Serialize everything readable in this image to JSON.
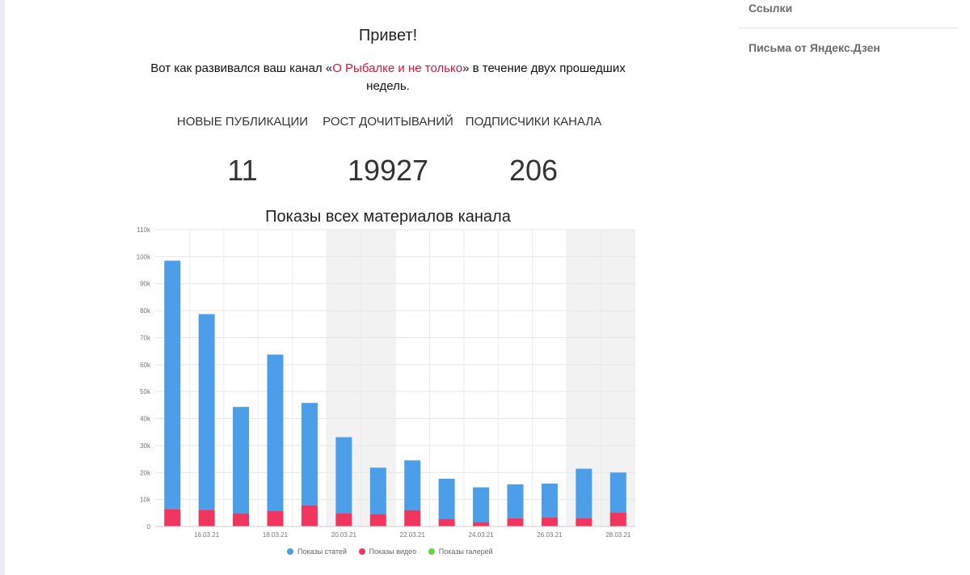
{
  "sidebar": {
    "items": [
      {
        "label": "Ссылки"
      },
      {
        "label": "Письма от Яндекс.Дзен"
      }
    ]
  },
  "letter": {
    "greeting": "Привет!",
    "intro_before": "Вот как развивался ваш канал «",
    "channel_name": "О Рыбалке и не только",
    "intro_after": "» в течение двух прошедших недель."
  },
  "stats": [
    {
      "label": "НОВЫЕ ПУБЛИКАЦИИ",
      "value": "11"
    },
    {
      "label": "РОСТ ДОЧИТЫВАНИЙ",
      "value": "19927"
    },
    {
      "label": "ПОДПИСЧИКИ КАНАЛА",
      "value": "206"
    }
  ],
  "colors": {
    "articles": "#4c9ee8",
    "videos": "#f0365e",
    "galleries": "#6fcf4b",
    "weekend_band": "#f2f2f2",
    "link": "#d6173c"
  },
  "chart_data": {
    "type": "bar",
    "stacked": true,
    "title": "Показы всех материалов канала",
    "categories": [
      "15.03.21",
      "16.03.21",
      "17.03.21",
      "18.03.21",
      "19.03.21",
      "20.03.21",
      "21.03.21",
      "22.03.21",
      "23.03.21",
      "24.03.21",
      "25.03.21",
      "26.03.21",
      "27.03.21",
      "28.03.21"
    ],
    "x_tick_labels": [
      "16.03.21",
      "18.03.21",
      "20.03.21",
      "22.03.21",
      "24.03.21",
      "26.03.21",
      "28.03.21"
    ],
    "y_tick_labels": [
      "0",
      "10k",
      "20k",
      "30k",
      "40k",
      "50k",
      "60k",
      "70k",
      "80k",
      "90k",
      "100k",
      "110k"
    ],
    "ylim": [
      0,
      110000
    ],
    "series": [
      {
        "name": "Показы статей",
        "values": [
          92000,
          72500,
          39500,
          58000,
          38000,
          28200,
          17300,
          18500,
          15000,
          13000,
          12500,
          12500,
          18300,
          14800
        ]
      },
      {
        "name": "Показы видео",
        "values": [
          6500,
          6200,
          4800,
          5700,
          7800,
          4900,
          4500,
          6000,
          2700,
          1500,
          3100,
          3400,
          3100,
          5200
        ]
      },
      {
        "name": "Показы галерей",
        "values": [
          0,
          0,
          0,
          0,
          0,
          0,
          0,
          0,
          0,
          0,
          0,
          0,
          0,
          0
        ]
      }
    ],
    "weekends": [
      [
        "20.03.21",
        "21.03.21"
      ],
      [
        "27.03.21",
        "28.03.21"
      ]
    ],
    "grid": true,
    "legend_position": "bottom-center"
  }
}
